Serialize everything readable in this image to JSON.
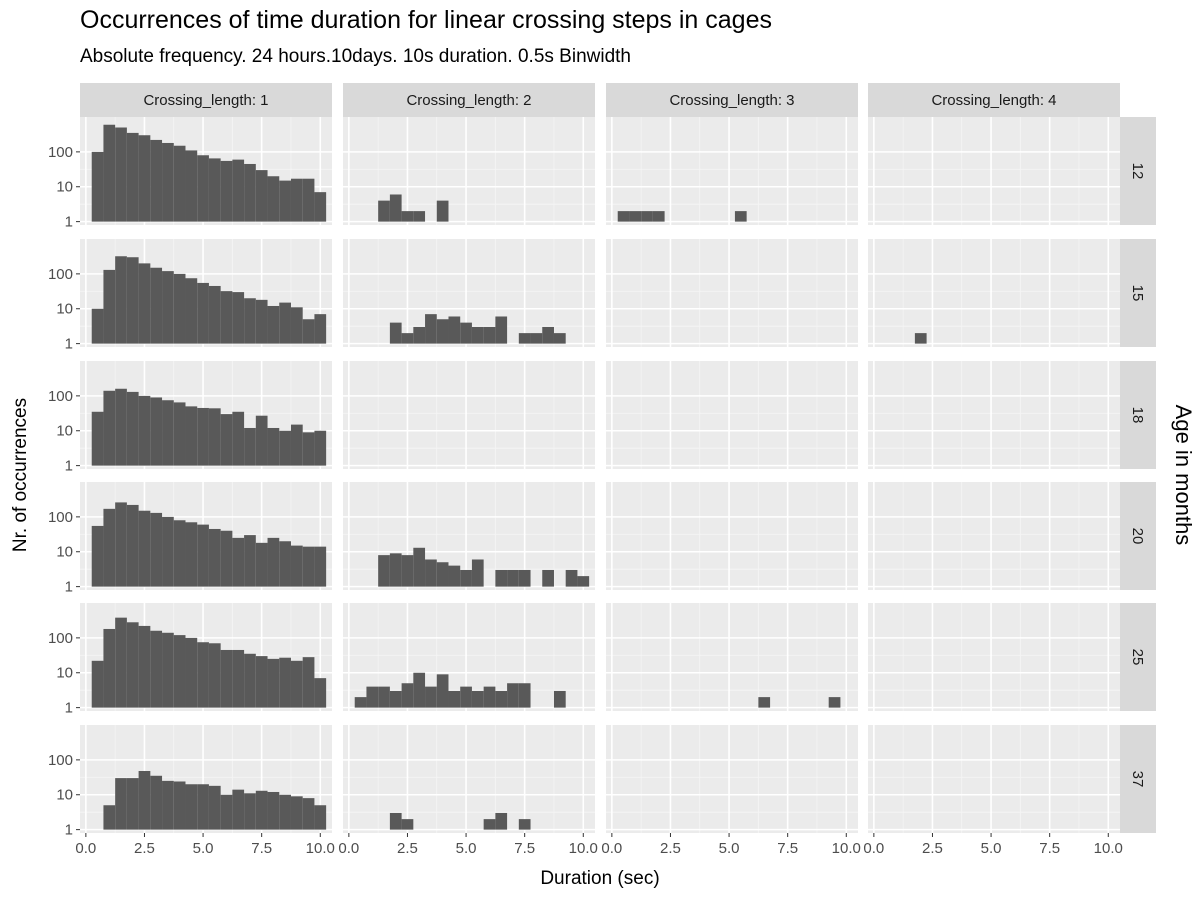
{
  "chart_data": {
    "type": "bar",
    "title": "Occurrences of time duration for linear crossing steps in cages",
    "subtitle": "Absolute frequency. 24 hours.10days. 10s duration. 0.5s Binwidth",
    "xlabel": "Duration (sec)",
    "ylabel": "Nr. of occurrences",
    "facet_row_label": "Age in months",
    "column_strips": [
      "Crossing_length: 1",
      "Crossing_length: 2",
      "Crossing_length: 3",
      "Crossing_length: 4"
    ],
    "row_strips": [
      "12",
      "15",
      "18",
      "20",
      "25",
      "37"
    ],
    "x_ticks": [
      "0.0",
      "2.5",
      "5.0",
      "7.5",
      "10.0"
    ],
    "y_ticks": [
      "1",
      "10",
      "100"
    ],
    "y_scale": "log10",
    "xlim": [
      -0.25,
      10.5
    ],
    "ylim": [
      0.8,
      1000
    ],
    "binwidth": 0.5,
    "bar_color": "#595959",
    "panel_background": "#ebebeb",
    "strip_background": "#d9d9d9",
    "bin_centers": [
      0.5,
      1.0,
      1.5,
      2.0,
      2.5,
      3.0,
      3.5,
      4.0,
      4.5,
      5.0,
      5.5,
      6.0,
      6.5,
      7.0,
      7.5,
      8.0,
      8.5,
      9.0,
      9.5,
      10.0
    ],
    "panels": [
      {
        "row": "12",
        "col": "Crossing_length: 1",
        "values": [
          100,
          600,
          500,
          350,
          300,
          220,
          180,
          150,
          110,
          80,
          65,
          55,
          60,
          45,
          30,
          20,
          15,
          17,
          17,
          7
        ]
      },
      {
        "row": "12",
        "col": "Crossing_length: 2",
        "values": [
          0,
          0,
          4,
          6,
          2,
          2,
          0,
          4,
          0,
          0,
          0,
          0,
          0,
          0,
          0,
          0,
          0,
          0,
          0,
          0
        ]
      },
      {
        "row": "12",
        "col": "Crossing_length: 3",
        "values": [
          2,
          2,
          2,
          2,
          0,
          0,
          0,
          0,
          0,
          0,
          2,
          0,
          0,
          0,
          0,
          0,
          0,
          0,
          0,
          0
        ]
      },
      {
        "row": "12",
        "col": "Crossing_length: 4",
        "values": []
      },
      {
        "row": "15",
        "col": "Crossing_length: 1",
        "values": [
          10,
          130,
          320,
          300,
          200,
          150,
          120,
          100,
          75,
          55,
          45,
          32,
          30,
          20,
          18,
          12,
          15,
          11,
          5,
          7
        ]
      },
      {
        "row": "15",
        "col": "Crossing_length: 2",
        "values": [
          0,
          0,
          0,
          4,
          2,
          3,
          7,
          5,
          6,
          4,
          3,
          3,
          6,
          0,
          2,
          2,
          3,
          2,
          0,
          0
        ]
      },
      {
        "row": "15",
        "col": "Crossing_length: 3",
        "values": []
      },
      {
        "row": "15",
        "col": "Crossing_length: 4",
        "values": [
          0,
          0,
          0,
          2,
          0,
          0,
          0,
          0,
          0,
          0,
          0,
          0,
          0,
          0,
          0,
          0,
          0,
          0,
          0,
          0
        ]
      },
      {
        "row": "18",
        "col": "Crossing_length: 1",
        "values": [
          35,
          140,
          160,
          130,
          100,
          90,
          75,
          65,
          50,
          45,
          44,
          30,
          35,
          12,
          27,
          12,
          10,
          15,
          9,
          10
        ]
      },
      {
        "row": "18",
        "col": "Crossing_length: 2",
        "values": []
      },
      {
        "row": "18",
        "col": "Crossing_length: 3",
        "values": []
      },
      {
        "row": "18",
        "col": "Crossing_length: 4",
        "values": []
      },
      {
        "row": "20",
        "col": "Crossing_length: 1",
        "values": [
          55,
          170,
          260,
          220,
          150,
          130,
          100,
          80,
          70,
          60,
          45,
          40,
          25,
          30,
          18,
          25,
          20,
          15,
          14,
          14
        ]
      },
      {
        "row": "20",
        "col": "Crossing_length: 2",
        "values": [
          0,
          0,
          8,
          9,
          8,
          13,
          6,
          5,
          4,
          3,
          6,
          0,
          3,
          3,
          3,
          0,
          3,
          0,
          3,
          2
        ]
      },
      {
        "row": "20",
        "col": "Crossing_length: 3",
        "values": []
      },
      {
        "row": "20",
        "col": "Crossing_length: 4",
        "values": []
      },
      {
        "row": "25",
        "col": "Crossing_length: 1",
        "values": [
          22,
          180,
          380,
          280,
          220,
          160,
          140,
          120,
          100,
          75,
          70,
          45,
          45,
          35,
          30,
          25,
          27,
          22,
          28,
          7
        ]
      },
      {
        "row": "25",
        "col": "Crossing_length: 2",
        "values": [
          2,
          4,
          4,
          3,
          5,
          10,
          4,
          9,
          3,
          4,
          3,
          4,
          3,
          5,
          5,
          0,
          0,
          3,
          0,
          0
        ]
      },
      {
        "row": "25",
        "col": "Crossing_length: 3",
        "values": [
          0,
          0,
          0,
          0,
          0,
          0,
          0,
          0,
          0,
          0,
          0,
          0,
          2,
          0,
          0,
          0,
          0,
          0,
          2,
          0
        ]
      },
      {
        "row": "25",
        "col": "Crossing_length: 4",
        "values": []
      },
      {
        "row": "37",
        "col": "Crossing_length: 1",
        "values": [
          0,
          5,
          30,
          30,
          48,
          35,
          25,
          24,
          20,
          20,
          18,
          10,
          14,
          11,
          13,
          12,
          10,
          9,
          8,
          5
        ]
      },
      {
        "row": "37",
        "col": "Crossing_length: 2",
        "values": [
          0,
          0,
          0,
          3,
          2,
          0,
          0,
          0,
          0,
          0,
          0,
          2,
          3,
          0,
          2,
          0,
          0,
          0,
          0,
          0
        ]
      },
      {
        "row": "37",
        "col": "Crossing_length: 3",
        "values": []
      },
      {
        "row": "37",
        "col": "Crossing_length: 4",
        "values": []
      }
    ]
  }
}
